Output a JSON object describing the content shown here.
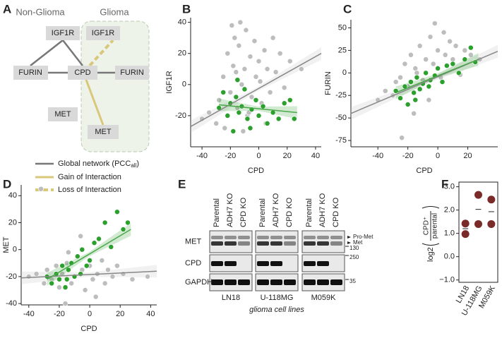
{
  "network": {
    "panel": "A",
    "left_title": "Non-Glioma",
    "right_title": "Glioma",
    "nodes": [
      "IGF1R",
      "IGF1R",
      "FURIN",
      "CPD",
      "FURIN",
      "MET",
      "MET"
    ],
    "legend": [
      {
        "label": "Global network (PCC",
        "subscript": "all",
        "suffix": ")"
      },
      {
        "label": "Gain of Interaction"
      },
      {
        "label": "Loss of Interaction"
      }
    ]
  },
  "blot": {
    "panel": "E",
    "lanes": [
      "Parental",
      "ADH7 KO",
      "CPD KO"
    ],
    "rows": [
      "MET",
      "CPD",
      "GAPDH"
    ],
    "cell_lines": [
      "LN18",
      "U-118MG",
      "M059K"
    ],
    "caption": "glioma cell lines",
    "met_bands": [
      "Pro-Met",
      "Met"
    ],
    "size_markers": [
      "130",
      "250",
      "35"
    ]
  },
  "chart_data": [
    {
      "type": "scatter",
      "panel": "B",
      "x_label": "CPD",
      "y_label": "IGF1R",
      "xlim": [
        -48,
        44
      ],
      "ylim": [
        -40,
        43
      ],
      "xticks": [
        -40,
        -20,
        0,
        20,
        40
      ],
      "yticks": [
        -20,
        0,
        20,
        40
      ],
      "series": [
        {
          "color": "#bdbdbd",
          "x": [
            -40,
            -35,
            -30,
            -28,
            -25,
            -22,
            -20,
            -18,
            -17,
            -15,
            -14,
            -12,
            -10,
            -9,
            -8,
            -6,
            -5,
            -3,
            -2,
            0,
            2,
            4,
            6,
            8,
            10,
            12,
            15,
            18,
            22,
            30,
            -24,
            -19,
            -11,
            -7,
            1,
            5,
            -16,
            -13
          ],
          "values": [
            -22,
            -18,
            -25,
            -10,
            5,
            20,
            -5,
            12,
            30,
            -15,
            25,
            0,
            10,
            35,
            -20,
            18,
            -8,
            28,
            5,
            15,
            -12,
            22,
            10,
            -5,
            30,
            8,
            20,
            -2,
            15,
            10,
            -28,
            38,
            -30,
            -18,
            2,
            -25,
            8,
            40
          ],
          "fit": {
            "x": [
              -48,
              44
            ],
            "values": [
              -27,
              20
            ]
          }
        },
        {
          "color": "#2ca02c",
          "x": [
            -28,
            -25,
            -22,
            -20,
            -18,
            -16,
            -14,
            -12,
            -10,
            -8,
            -5,
            -2,
            0,
            3,
            6,
            10,
            14,
            18,
            22,
            25,
            -15,
            -6
          ],
          "values": [
            -15,
            -5,
            -20,
            -12,
            -30,
            -8,
            -18,
            -14,
            -3,
            -22,
            -16,
            -10,
            -20,
            -14,
            -25,
            -18,
            -22,
            -12,
            -10,
            -22,
            3,
            -28
          ],
          "fit": {
            "x": [
              -28,
              27
            ],
            "values": [
              -13,
              -18
            ]
          }
        }
      ]
    },
    {
      "type": "scatter",
      "panel": "C",
      "x_label": "CPD",
      "y_label": "FURIN",
      "xlim": [
        -58,
        40
      ],
      "ylim": [
        -82,
        59
      ],
      "xticks": [
        -40,
        -20,
        0,
        20
      ],
      "yticks": [
        -75,
        -50,
        -25,
        0,
        25,
        50
      ],
      "series": [
        {
          "color": "#bdbdbd",
          "x": [
            -40,
            -35,
            -30,
            -28,
            -25,
            -22,
            -20,
            -18,
            -15,
            -12,
            -10,
            -8,
            -5,
            -3,
            0,
            2,
            5,
            8,
            10,
            12,
            15,
            18,
            22,
            28,
            -16,
            -6,
            -24,
            4,
            -14,
            -2
          ],
          "values": [
            -30,
            -20,
            -25,
            -10,
            -5,
            10,
            -15,
            20,
            5,
            30,
            -8,
            15,
            40,
            10,
            25,
            -5,
            20,
            35,
            15,
            30,
            -2,
            25,
            20,
            15,
            -45,
            -30,
            -72,
            45,
            0,
            55
          ],
          "fit": {
            "x": [
              -58,
              40
            ],
            "values": [
              -45,
              24
            ]
          }
        },
        {
          "color": "#2ca02c",
          "x": [
            -28,
            -25,
            -22,
            -20,
            -18,
            -16,
            -14,
            -12,
            -10,
            -8,
            -5,
            -2,
            0,
            3,
            6,
            10,
            14,
            18,
            22,
            25,
            -15,
            -6
          ],
          "values": [
            -20,
            -28,
            -15,
            -35,
            -10,
            -22,
            -5,
            -18,
            -12,
            0,
            -8,
            -3,
            5,
            -10,
            8,
            10,
            0,
            15,
            28,
            12,
            -30,
            -15
          ],
          "fit": {
            "x": [
              -28,
              27
            ],
            "values": [
              -22,
              15
            ]
          }
        }
      ]
    },
    {
      "type": "scatter",
      "panel": "D",
      "x_label": "CPD",
      "y_label": "MET",
      "xlim": [
        -45,
        44
      ],
      "ylim": [
        -41,
        48
      ],
      "xticks": [
        -40,
        -20,
        0,
        20,
        40
      ],
      "yticks": [
        -40,
        -20,
        0,
        20,
        40
      ],
      "series": [
        {
          "color": "#bdbdbd",
          "x": [
            -40,
            -35,
            -30,
            -28,
            -25,
            -22,
            -20,
            -18,
            -15,
            -12,
            -10,
            -8,
            -5,
            -3,
            0,
            2,
            5,
            8,
            10,
            12,
            15,
            18,
            22,
            28,
            -32,
            -16,
            -6,
            4,
            -14,
            38
          ],
          "values": [
            -20,
            -18,
            -25,
            -15,
            -22,
            -12,
            -28,
            -18,
            -10,
            -25,
            -20,
            -5,
            -15,
            -30,
            -12,
            -22,
            -18,
            -8,
            -25,
            -15,
            -20,
            -12,
            -18,
            -22,
            45,
            -40,
            10,
            -35,
            -2,
            -20
          ],
          "fit": {
            "x": [
              -45,
              44
            ],
            "values": [
              -21,
              -16
            ]
          }
        },
        {
          "color": "#2ca02c",
          "x": [
            -28,
            -25,
            -22,
            -20,
            -18,
            -16,
            -14,
            -12,
            -10,
            -8,
            -5,
            -2,
            0,
            3,
            6,
            10,
            14,
            18,
            22,
            25,
            -15,
            -6
          ],
          "values": [
            -20,
            -25,
            -18,
            -22,
            -12,
            -28,
            -15,
            -10,
            -20,
            -5,
            0,
            -12,
            -8,
            5,
            8,
            20,
            2,
            28,
            15,
            20,
            -22,
            -18
          ],
          "fit": {
            "x": [
              -28,
              27
            ],
            "values": [
              -22,
              15
            ]
          }
        }
      ]
    },
    {
      "type": "dot",
      "panel": "F",
      "categories": [
        "LN18",
        "U-118MG",
        "M059K"
      ],
      "y_label": {
        "prefix": "log2",
        "numerator": "CPD⁺",
        "denominator": "parental"
      },
      "values": [
        [
          1.42,
          0.97
        ],
        [
          2.65,
          1.4
        ],
        [
          2.45,
          1.4
        ]
      ],
      "means": [
        1.2,
        2.03,
        1.93
      ],
      "color": "#7b2a2a",
      "ylim": [
        -1.1,
        3.2
      ],
      "yticks": [
        {
          "value": -1,
          "label": "−1.0"
        },
        {
          "value": 0,
          "label": "0.0"
        },
        {
          "value": 1,
          "label": "1.0"
        },
        {
          "value": 2,
          "label": "2.0"
        },
        {
          "value": 3,
          "label": "3.0"
        }
      ]
    }
  ]
}
